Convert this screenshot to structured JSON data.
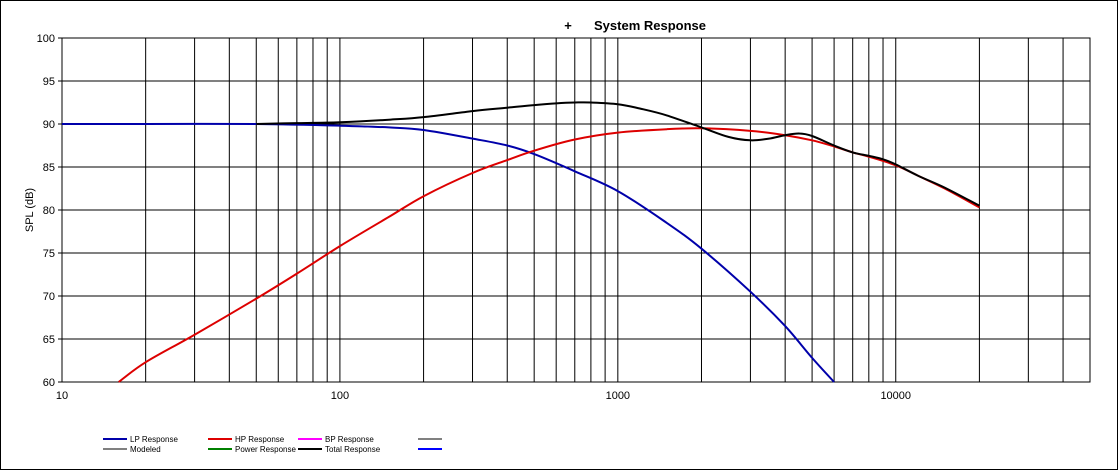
{
  "chart_data": {
    "type": "line",
    "title": "System Response",
    "title_marker": "+",
    "ylabel": "SPL (dB)",
    "xlabel": "",
    "x_scale": "log",
    "xlim": [
      10,
      50000
    ],
    "ylim": [
      60,
      100
    ],
    "grid": true,
    "x_ticks": [
      10,
      100,
      1000,
      10000
    ],
    "x_tick_labels": [
      "10",
      "100",
      "1000",
      "10000"
    ],
    "y_ticks": [
      60,
      65,
      70,
      75,
      80,
      85,
      90,
      95,
      100
    ],
    "legend_position": "bottom",
    "series": [
      {
        "name": "LP Response",
        "color": "#0000aa",
        "x": [
          10,
          20,
          50,
          100,
          150,
          200,
          300,
          400,
          500,
          700,
          1000,
          1500,
          2000,
          3000,
          4000,
          5000,
          6000
        ],
        "y": [
          90,
          90,
          90,
          89.8,
          89.6,
          89.3,
          88.3,
          87.5,
          86.5,
          84.5,
          82.2,
          78.5,
          75.5,
          70.5,
          66.5,
          62.8,
          60
        ]
      },
      {
        "name": "HP Response",
        "color": "#dd0000",
        "x": [
          16,
          20,
          30,
          50,
          70,
          100,
          150,
          200,
          300,
          400,
          500,
          700,
          1000,
          1500,
          2000,
          3000,
          4000,
          5000,
          6000,
          7000,
          8000,
          10000,
          12000,
          15000,
          20000
        ],
        "y": [
          60,
          62.3,
          65.5,
          69.7,
          72.6,
          75.8,
          79.2,
          81.6,
          84.3,
          85.8,
          86.9,
          88.2,
          89,
          89.4,
          89.5,
          89.2,
          88.7,
          88.1,
          87.4,
          86.7,
          86.2,
          85.2,
          84,
          82.5,
          80.3
        ]
      },
      {
        "name": "BP Response",
        "color": "#ff00ff",
        "x": [],
        "y": []
      },
      {
        "name": "Modeled",
        "color": "#808080",
        "x": [],
        "y": []
      },
      {
        "name": "Power Response",
        "color": "#008000",
        "x": [],
        "y": []
      },
      {
        "name": "Total Response",
        "color": "#000000",
        "x": [
          50,
          70,
          100,
          150,
          200,
          300,
          400,
          500,
          600,
          700,
          800,
          1000,
          1200,
          1500,
          2000,
          2500,
          3000,
          3500,
          4000,
          4500,
          5000,
          6000,
          7000,
          8000,
          9000,
          10000,
          12000,
          15000,
          20000
        ],
        "y": [
          90,
          90.1,
          90.2,
          90.5,
          90.8,
          91.5,
          91.9,
          92.2,
          92.4,
          92.5,
          92.5,
          92.3,
          91.8,
          91,
          89.6,
          88.5,
          88.1,
          88.3,
          88.7,
          88.9,
          88.6,
          87.5,
          86.7,
          86.3,
          85.9,
          85.3,
          84,
          82.6,
          80.5
        ]
      }
    ],
    "legend": [
      {
        "label": "LP Response",
        "color": "#0000aa"
      },
      {
        "label": "HP Response",
        "color": "#dd0000"
      },
      {
        "label": "BP Response",
        "color": "#ff00ff"
      },
      {
        "label": "",
        "color": "#808080"
      },
      {
        "label": "Modeled",
        "color": "#808080"
      },
      {
        "label": "Power Response",
        "color": "#008000"
      },
      {
        "label": "Total Response",
        "color": "#000000"
      },
      {
        "label": "",
        "color": "#0000ff"
      }
    ]
  }
}
